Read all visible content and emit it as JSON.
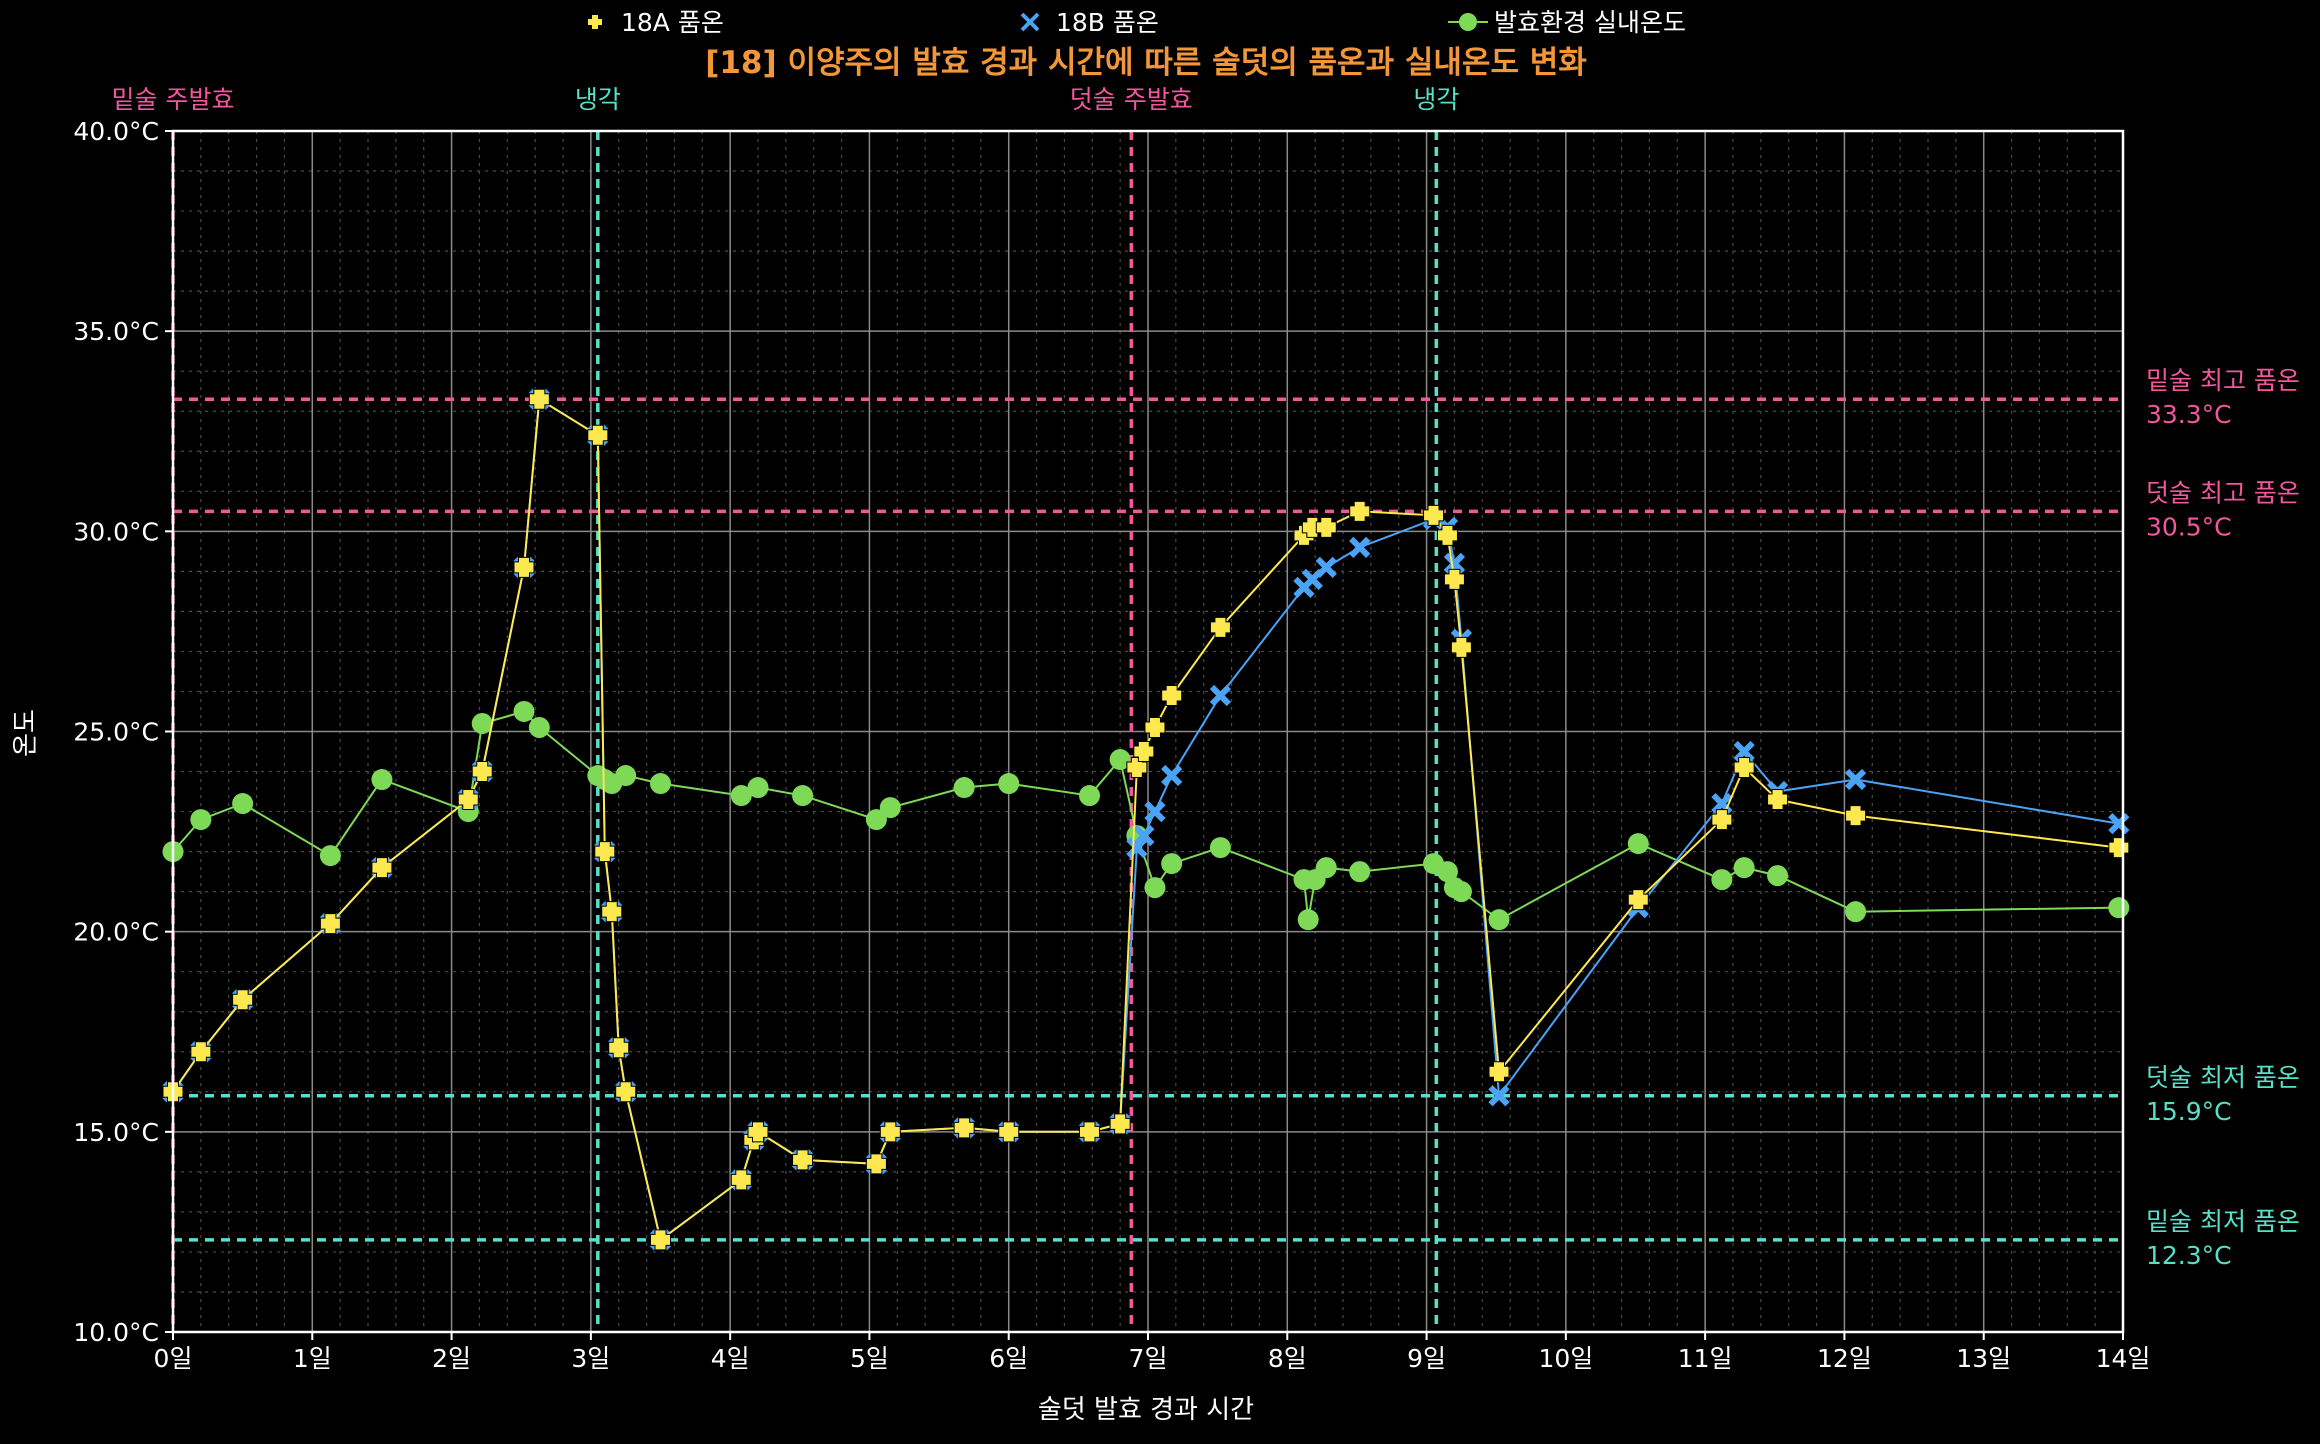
{
  "chart_data": {
    "type": "line",
    "title": "[18] 이양주의 발효 경과 시간에 따른 술덧의 품온과 실내온도 변화",
    "xlabel": "술덧 발효 경과 시간",
    "ylabel": "온도",
    "xlim": [
      0,
      14
    ],
    "ylim": [
      10,
      40
    ],
    "x_ticks": [
      "0일",
      "1일",
      "2일",
      "3일",
      "4일",
      "5일",
      "6일",
      "7일",
      "8일",
      "9일",
      "10일",
      "11일",
      "12일",
      "13일",
      "14일"
    ],
    "y_ticks": [
      "10.0°C",
      "15.0°C",
      "20.0°C",
      "25.0°C",
      "30.0°C",
      "35.0°C",
      "40.0°C"
    ],
    "grid": true,
    "legend_position": "top",
    "series": [
      {
        "name": "18A 품온",
        "color": "#fde84f",
        "marker": "plus",
        "points": [
          [
            0,
            16.0
          ],
          [
            0.2,
            17.0
          ],
          [
            0.5,
            18.3
          ],
          [
            1.13,
            20.2
          ],
          [
            1.5,
            21.6
          ],
          [
            2.12,
            23.3
          ],
          [
            2.22,
            24.0
          ],
          [
            2.52,
            29.1
          ],
          [
            2.63,
            33.3
          ],
          [
            3.05,
            32.4
          ],
          [
            3.1,
            22.0
          ],
          [
            3.15,
            20.5
          ],
          [
            3.2,
            17.1
          ],
          [
            3.25,
            16.0
          ],
          [
            3.5,
            12.3
          ],
          [
            4.08,
            13.8
          ],
          [
            4.17,
            14.8
          ],
          [
            4.2,
            15.0
          ],
          [
            4.52,
            14.3
          ],
          [
            5.05,
            14.2
          ],
          [
            5.15,
            15.0
          ],
          [
            5.68,
            15.1
          ],
          [
            6.0,
            15.0
          ],
          [
            6.58,
            15.0
          ],
          [
            6.8,
            15.2
          ],
          [
            6.92,
            24.1
          ],
          [
            6.97,
            24.5
          ],
          [
            7.05,
            25.1
          ],
          [
            7.17,
            25.9
          ],
          [
            7.52,
            27.6
          ],
          [
            8.12,
            29.9
          ],
          [
            8.18,
            30.1
          ],
          [
            8.28,
            30.1
          ],
          [
            8.52,
            30.5
          ],
          [
            9.05,
            30.4
          ],
          [
            9.15,
            29.9
          ],
          [
            9.2,
            28.8
          ],
          [
            9.25,
            27.1
          ],
          [
            9.52,
            16.5
          ],
          [
            10.52,
            20.8
          ],
          [
            11.12,
            22.8
          ],
          [
            11.28,
            24.1
          ],
          [
            11.52,
            23.3
          ],
          [
            12.08,
            22.9
          ],
          [
            13.97,
            22.1
          ]
        ]
      },
      {
        "name": "18B 품온",
        "color": "#4aa3f5",
        "marker": "x",
        "points": [
          [
            0,
            16.0
          ],
          [
            0.2,
            17.0
          ],
          [
            0.5,
            18.3
          ],
          [
            1.13,
            20.2
          ],
          [
            1.5,
            21.6
          ],
          [
            2.12,
            23.3
          ],
          [
            2.22,
            24.0
          ],
          [
            2.52,
            29.1
          ],
          [
            2.63,
            33.3
          ],
          [
            3.05,
            32.4
          ],
          [
            3.1,
            22.0
          ],
          [
            3.15,
            20.5
          ],
          [
            3.2,
            17.1
          ],
          [
            3.25,
            16.0
          ],
          [
            3.5,
            12.3
          ],
          [
            4.08,
            13.8
          ],
          [
            4.17,
            14.8
          ],
          [
            4.2,
            15.0
          ],
          [
            4.52,
            14.3
          ],
          [
            5.05,
            14.2
          ],
          [
            5.15,
            15.0
          ],
          [
            5.68,
            15.1
          ],
          [
            6.0,
            15.0
          ],
          [
            6.58,
            15.0
          ],
          [
            6.8,
            15.2
          ],
          [
            6.92,
            22.1
          ],
          [
            6.97,
            22.4
          ],
          [
            7.05,
            23.0
          ],
          [
            7.17,
            23.9
          ],
          [
            7.52,
            25.9
          ],
          [
            8.12,
            28.6
          ],
          [
            8.18,
            28.8
          ],
          [
            8.28,
            29.1
          ],
          [
            8.52,
            29.6
          ],
          [
            9.05,
            30.3
          ],
          [
            9.15,
            30.1
          ],
          [
            9.2,
            29.2
          ],
          [
            9.25,
            27.3
          ],
          [
            9.52,
            15.9
          ],
          [
            10.52,
            20.6
          ],
          [
            11.12,
            23.2
          ],
          [
            11.28,
            24.5
          ],
          [
            11.52,
            23.5
          ],
          [
            12.08,
            23.8
          ],
          [
            13.97,
            22.7
          ]
        ]
      },
      {
        "name": "발효환경 실내온도",
        "color": "#7ed957",
        "marker": "circle",
        "points": [
          [
            0,
            22.0
          ],
          [
            0.2,
            22.8
          ],
          [
            0.5,
            23.2
          ],
          [
            1.13,
            21.9
          ],
          [
            1.5,
            23.8
          ],
          [
            2.12,
            23.0
          ],
          [
            2.22,
            25.2
          ],
          [
            2.52,
            25.5
          ],
          [
            2.63,
            25.1
          ],
          [
            3.05,
            23.9
          ],
          [
            3.1,
            23.8
          ],
          [
            3.15,
            23.7
          ],
          [
            3.25,
            23.9
          ],
          [
            3.5,
            23.7
          ],
          [
            4.08,
            23.4
          ],
          [
            4.2,
            23.6
          ],
          [
            4.52,
            23.4
          ],
          [
            5.05,
            22.8
          ],
          [
            5.15,
            23.1
          ],
          [
            5.68,
            23.6
          ],
          [
            6.0,
            23.7
          ],
          [
            6.58,
            23.4
          ],
          [
            6.8,
            24.3
          ],
          [
            6.92,
            22.4
          ],
          [
            7.05,
            21.1
          ],
          [
            7.17,
            21.7
          ],
          [
            7.52,
            22.1
          ],
          [
            8.12,
            21.3
          ],
          [
            8.15,
            20.3
          ],
          [
            8.2,
            21.3
          ],
          [
            8.28,
            21.6
          ],
          [
            8.52,
            21.5
          ],
          [
            9.05,
            21.7
          ],
          [
            9.15,
            21.5
          ],
          [
            9.2,
            21.1
          ],
          [
            9.25,
            21.0
          ],
          [
            9.52,
            20.3
          ],
          [
            10.52,
            22.2
          ],
          [
            11.12,
            21.3
          ],
          [
            11.28,
            21.6
          ],
          [
            11.52,
            21.4
          ],
          [
            12.08,
            20.5
          ],
          [
            13.97,
            20.6
          ]
        ]
      }
    ],
    "vlines": [
      {
        "x": 0,
        "label": "밑술 주발효",
        "color": "#f2579e"
      },
      {
        "x": 3.05,
        "label": "냉각",
        "color": "#56e0c8"
      },
      {
        "x": 6.88,
        "label": "덧술 주발효",
        "color": "#f2579e"
      },
      {
        "x": 9.07,
        "label": "냉각",
        "color": "#56e0c8"
      }
    ],
    "hlines": [
      {
        "y": 33.3,
        "label1": "밑술 최고 품온",
        "label2": "33.3°C",
        "color": "#f2579e"
      },
      {
        "y": 30.5,
        "label1": "덧술 최고 품온",
        "label2": "30.5°C",
        "color": "#f2579e"
      },
      {
        "y": 15.9,
        "label1": "덧술 최저 품온",
        "label2": "15.9°C",
        "color": "#56e0c8"
      },
      {
        "y": 12.3,
        "label1": "밑술 최저 품온",
        "label2": "12.3°C",
        "color": "#56e0c8"
      }
    ]
  }
}
